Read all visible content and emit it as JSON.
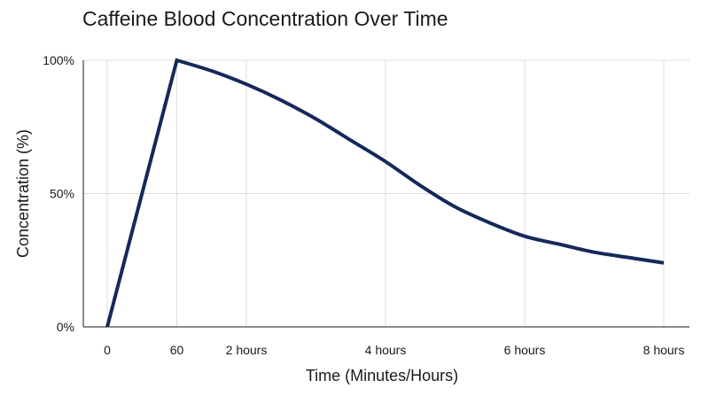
{
  "chart_data": {
    "type": "line",
    "title": "Caffeine Blood Concentration Over Time",
    "xlabel": "Time (Minutes/Hours)",
    "ylabel": "Concentration (%)",
    "x_unit": "minutes",
    "xlim": [
      0,
      480
    ],
    "ylim": [
      0,
      100
    ],
    "x_ticks": [
      {
        "value": 0,
        "label": "0"
      },
      {
        "value": 60,
        "label": "60"
      },
      {
        "value": 120,
        "label": "2 hours"
      },
      {
        "value": 240,
        "label": "4 hours"
      },
      {
        "value": 360,
        "label": "6 hours"
      },
      {
        "value": 480,
        "label": "8 hours"
      }
    ],
    "y_ticks": [
      {
        "value": 0,
        "label": "0%"
      },
      {
        "value": 50,
        "label": "50%"
      },
      {
        "value": 100,
        "label": "100%"
      }
    ],
    "grid": true,
    "line_color": "#14295a",
    "grid_color": "#dcdcdc",
    "series": [
      {
        "x": [
          0,
          60,
          90,
          120,
          150,
          180,
          210,
          240,
          270,
          300,
          330,
          360,
          390,
          420,
          450,
          480
        ],
        "values": [
          0,
          100,
          96,
          91,
          85,
          78,
          70,
          62,
          53,
          45,
          39,
          34,
          31,
          28,
          26,
          24
        ]
      }
    ]
  }
}
